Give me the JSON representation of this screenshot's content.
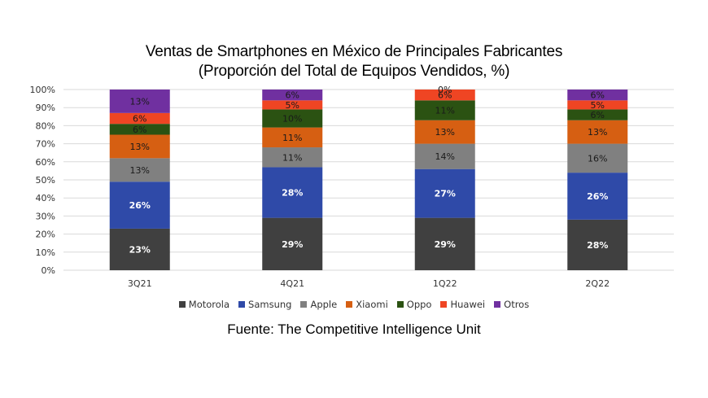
{
  "chart_data": {
    "type": "bar",
    "stacked": true,
    "title": "Ventas de Smartphones en México de Principales Fabricantes",
    "subtitle": "(Proporción del Total de Equipos Vendidos, %)",
    "categories": [
      "3Q21",
      "4Q21",
      "1Q22",
      "2Q22"
    ],
    "ylim": [
      0,
      100
    ],
    "yticks": [
      "0%",
      "10%",
      "20%",
      "30%",
      "40%",
      "50%",
      "60%",
      "70%",
      "80%",
      "90%",
      "100%"
    ],
    "grid": true,
    "legend_position": "bottom",
    "series": [
      {
        "name": "Motorola",
        "color": "#404040",
        "values": [
          23,
          29,
          29,
          28
        ],
        "labels": [
          "23%",
          "29%",
          "29%",
          "28%"
        ],
        "label_color": "#ffffff"
      },
      {
        "name": "Samsung",
        "color": "#2f4aa8",
        "values": [
          26,
          28,
          27,
          26
        ],
        "labels": [
          "26%",
          "28%",
          "27%",
          "26%"
        ],
        "label_color": "#ffffff"
      },
      {
        "name": "Apple",
        "color": "#808080",
        "values": [
          13,
          11,
          14,
          16
        ],
        "labels": [
          "13%",
          "11%",
          "14%",
          "16%"
        ],
        "label_color": "#1a1a1a"
      },
      {
        "name": "Xiaomi",
        "color": "#d65f12",
        "values": [
          13,
          11,
          13,
          13
        ],
        "labels": [
          "13%",
          "11%",
          "13%",
          "13%"
        ],
        "label_color": "#1a1a1a"
      },
      {
        "name": "Oppo",
        "color": "#2b5212",
        "values": [
          6,
          10,
          11,
          6
        ],
        "labels": [
          "6%",
          "10%",
          "11%",
          "6%"
        ],
        "label_color": "#1a1a1a"
      },
      {
        "name": "Huawei",
        "color": "#ef4523",
        "values": [
          6,
          5,
          6,
          5
        ],
        "labels": [
          "6%",
          "5%",
          "6%",
          "5%"
        ],
        "label_color": "#1a1a1a"
      },
      {
        "name": "Otros",
        "color": "#7030a0",
        "values": [
          13,
          6,
          0,
          6
        ],
        "labels": [
          "13%",
          "6%",
          "0%",
          "6%"
        ],
        "label_color": "#1a1a1a"
      }
    ]
  },
  "source": "Fuente: The Competitive Intelligence Unit"
}
